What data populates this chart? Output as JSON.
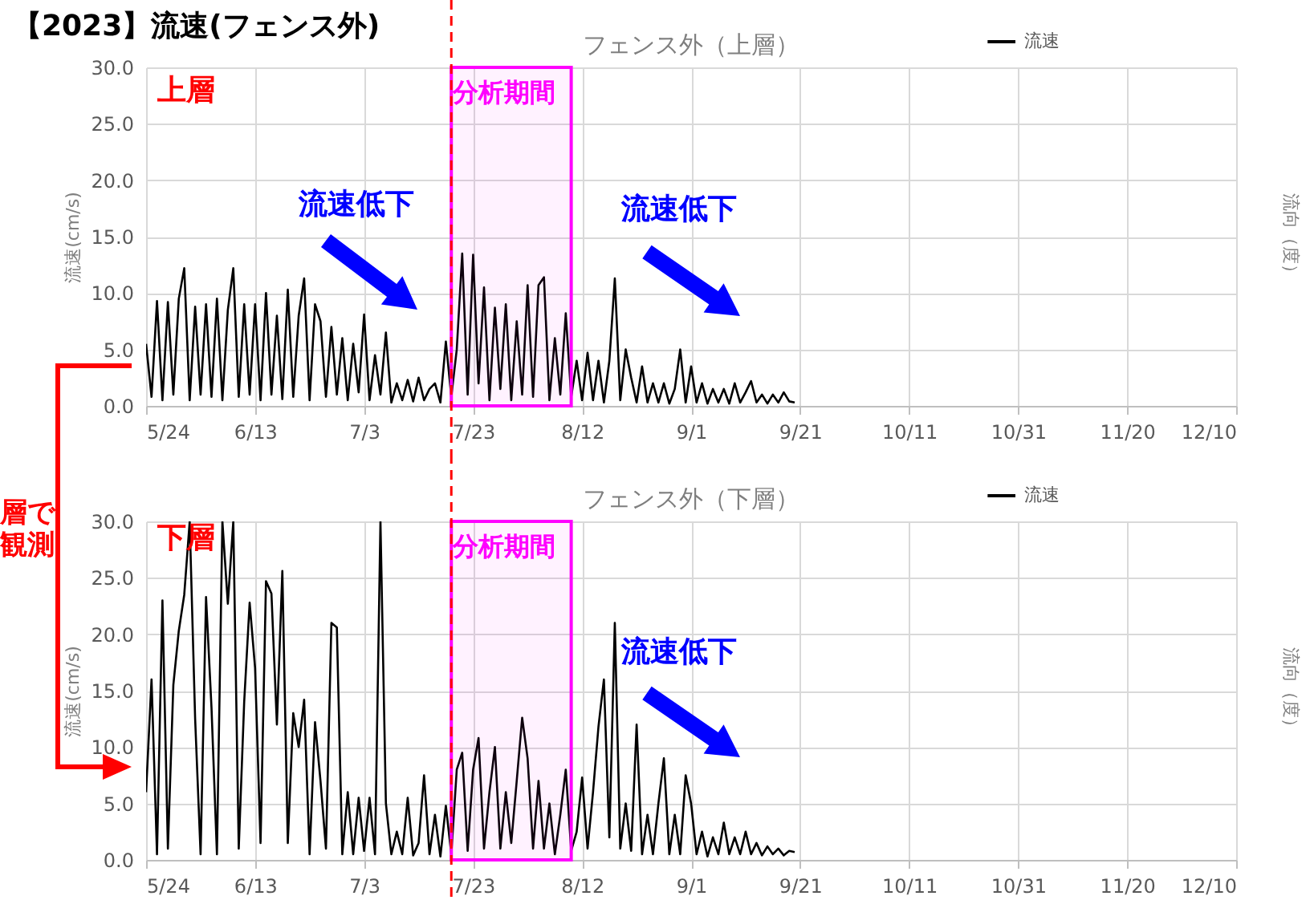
{
  "chart_data": [
    {
      "type": "line",
      "title": "フェンス外（上層）",
      "ylabel": "流速(cm/s)",
      "y2label": "流向（度）",
      "legend": "top right",
      "grid": true,
      "annotations": [
        "【2023】流速(フェンス外)",
        "上層",
        "流速低下",
        "流速低下",
        "層で観測"
      ],
      "xlim": [
        "2023-05-24",
        "2023-12-10"
      ],
      "xticks": [
        {
          "value": "2023-05-24",
          "label": "5/24"
        },
        {
          "value": "2023-06-13",
          "label": "6/13"
        },
        {
          "value": "2023-07-03",
          "label": "7/3"
        },
        {
          "value": "2023-07-23",
          "label": "7/23"
        },
        {
          "value": "2023-08-12",
          "label": "8/12"
        },
        {
          "value": "2023-09-01",
          "label": "9/1"
        },
        {
          "value": "2023-09-21",
          "label": "9/21"
        },
        {
          "value": "2023-10-11",
          "label": "10/11"
        },
        {
          "value": "2023-10-31",
          "label": "10/31"
        },
        {
          "value": "2023-11-20",
          "label": "11/20"
        },
        {
          "value": "2023-12-10",
          "label": "12/10"
        }
      ],
      "ylim": [
        0,
        30
      ],
      "yticks": [
        {
          "value": 0,
          "label": "0.0"
        },
        {
          "value": 5,
          "label": "5.0"
        },
        {
          "value": 10,
          "label": "10.0"
        },
        {
          "value": 15,
          "label": "15.0"
        },
        {
          "value": 20,
          "label": "20.0"
        },
        {
          "value": 25,
          "label": "25.0"
        },
        {
          "value": 30,
          "label": "30.0"
        }
      ],
      "ref_lines": [
        {
          "axis": "x",
          "value": "2023-07-19",
          "color": "#ff0000",
          "line_style": "dashed"
        }
      ],
      "bands": [
        {
          "axis": "x",
          "from": "2023-07-19",
          "to": "2023-08-10",
          "label": "分析期間",
          "color": "#ff00ff"
        }
      ],
      "x": [
        "2023-05-24",
        "2023-05-25",
        "2023-05-26",
        "2023-05-27",
        "2023-05-28",
        "2023-05-29",
        "2023-05-30",
        "2023-05-31",
        "2023-06-01",
        "2023-06-02",
        "2023-06-03",
        "2023-06-04",
        "2023-06-05",
        "2023-06-06",
        "2023-06-07",
        "2023-06-08",
        "2023-06-09",
        "2023-06-10",
        "2023-06-11",
        "2023-06-12",
        "2023-06-13",
        "2023-06-14",
        "2023-06-15",
        "2023-06-16",
        "2023-06-17",
        "2023-06-18",
        "2023-06-19",
        "2023-06-20",
        "2023-06-21",
        "2023-06-22",
        "2023-06-23",
        "2023-06-24",
        "2023-06-25",
        "2023-06-26",
        "2023-06-27",
        "2023-06-28",
        "2023-06-29",
        "2023-06-30",
        "2023-07-01",
        "2023-07-02",
        "2023-07-03",
        "2023-07-04",
        "2023-07-05",
        "2023-07-06",
        "2023-07-07",
        "2023-07-08",
        "2023-07-09",
        "2023-07-10",
        "2023-07-11",
        "2023-07-12",
        "2023-07-13",
        "2023-07-14",
        "2023-07-15",
        "2023-07-16",
        "2023-07-17",
        "2023-07-18",
        "2023-07-19",
        "2023-07-20",
        "2023-07-21",
        "2023-07-22",
        "2023-07-23",
        "2023-07-24",
        "2023-07-25",
        "2023-07-26",
        "2023-07-27",
        "2023-07-28",
        "2023-07-29",
        "2023-07-30",
        "2023-07-31",
        "2023-08-01",
        "2023-08-02",
        "2023-08-03",
        "2023-08-04",
        "2023-08-05",
        "2023-08-06",
        "2023-08-07",
        "2023-08-08",
        "2023-08-09",
        "2023-08-10",
        "2023-08-11",
        "2023-08-12",
        "2023-08-13",
        "2023-08-14",
        "2023-08-15",
        "2023-08-16",
        "2023-08-17",
        "2023-08-18",
        "2023-08-19",
        "2023-08-20",
        "2023-08-21",
        "2023-08-22",
        "2023-08-23",
        "2023-08-24",
        "2023-08-25",
        "2023-08-26",
        "2023-08-27",
        "2023-08-28",
        "2023-08-29",
        "2023-08-30",
        "2023-08-31",
        "2023-09-01",
        "2023-09-02",
        "2023-09-03",
        "2023-09-04",
        "2023-09-05",
        "2023-09-06",
        "2023-09-07",
        "2023-09-08",
        "2023-09-09",
        "2023-09-10",
        "2023-09-11",
        "2023-09-12",
        "2023-09-13",
        "2023-09-14",
        "2023-09-15",
        "2023-09-16",
        "2023-09-17",
        "2023-09-18",
        "2023-09-19",
        "2023-09-20"
      ],
      "series": [
        {
          "name": "流速",
          "color": "#000000",
          "values": [
            5.5,
            0.8,
            9.3,
            0.5,
            9.2,
            1.0,
            9.5,
            12.2,
            0.5,
            8.8,
            1.0,
            9.0,
            0.8,
            9.5,
            0.5,
            8.5,
            12.2,
            0.8,
            9.0,
            1.0,
            9.0,
            0.5,
            10.0,
            1.0,
            8.0,
            0.6,
            10.3,
            0.8,
            8.0,
            11.3,
            0.5,
            9.0,
            7.5,
            0.8,
            7.0,
            1.0,
            6.0,
            0.5,
            5.5,
            1.2,
            8.1,
            0.5,
            4.5,
            1.0,
            6.5,
            0.3,
            2.0,
            0.5,
            2.3,
            0.4,
            2.5,
            0.5,
            1.5,
            2.0,
            0.3,
            5.7,
            0.8,
            5.0,
            13.5,
            1.0,
            13.4,
            2.0,
            10.5,
            0.5,
            8.7,
            1.5,
            9.0,
            0.5,
            7.5,
            1.0,
            10.7,
            0.8,
            10.7,
            11.4,
            0.5,
            6.0,
            1.0,
            8.2,
            0.8,
            4.0,
            0.5,
            4.7,
            0.5,
            4.0,
            0.3,
            4.0,
            11.3,
            0.5,
            5.0,
            2.5,
            0.3,
            3.5,
            0.3,
            2.0,
            0.3,
            2.0,
            0.2,
            1.5,
            5.0,
            0.3,
            3.5,
            0.3,
            2.0,
            0.2,
            1.5,
            0.3,
            1.5,
            0.2,
            2.0,
            0.3,
            1.2,
            2.2,
            0.3,
            1.0,
            0.2,
            1.0,
            0.3,
            1.2,
            0.4,
            0.3
          ]
        }
      ]
    },
    {
      "type": "line",
      "title": "フェンス外（下層）",
      "ylabel": "流速(cm/s)",
      "y2label": "流向（度）",
      "legend": "top right",
      "grid": true,
      "annotations": [
        "下層",
        "流速低下"
      ],
      "xlim": [
        "2023-05-24",
        "2023-12-10"
      ],
      "xticks": [
        {
          "value": "2023-05-24",
          "label": "5/24"
        },
        {
          "value": "2023-06-13",
          "label": "6/13"
        },
        {
          "value": "2023-07-03",
          "label": "7/3"
        },
        {
          "value": "2023-07-23",
          "label": "7/23"
        },
        {
          "value": "2023-08-12",
          "label": "8/12"
        },
        {
          "value": "2023-09-01",
          "label": "9/1"
        },
        {
          "value": "2023-09-21",
          "label": "9/21"
        },
        {
          "value": "2023-10-11",
          "label": "10/11"
        },
        {
          "value": "2023-10-31",
          "label": "10/31"
        },
        {
          "value": "2023-11-20",
          "label": "11/20"
        },
        {
          "value": "2023-12-10",
          "label": "12/10"
        }
      ],
      "ylim": [
        0,
        30
      ],
      "yticks": [
        {
          "value": 0,
          "label": "0.0"
        },
        {
          "value": 5,
          "label": "5.0"
        },
        {
          "value": 10,
          "label": "10.0"
        },
        {
          "value": 15,
          "label": "15.0"
        },
        {
          "value": 20,
          "label": "20.0"
        },
        {
          "value": 25,
          "label": "25.0"
        },
        {
          "value": 30,
          "label": "30.0"
        }
      ],
      "ref_lines": [
        {
          "axis": "x",
          "value": "2023-07-19",
          "color": "#ff0000",
          "line_style": "dashed"
        }
      ],
      "bands": [
        {
          "axis": "x",
          "from": "2023-07-19",
          "to": "2023-08-10",
          "label": "分析期間",
          "color": "#ff00ff"
        }
      ],
      "x": [
        "2023-05-24",
        "2023-05-25",
        "2023-05-26",
        "2023-05-27",
        "2023-05-28",
        "2023-05-29",
        "2023-05-30",
        "2023-05-31",
        "2023-06-01",
        "2023-06-02",
        "2023-06-03",
        "2023-06-04",
        "2023-06-05",
        "2023-06-06",
        "2023-06-07",
        "2023-06-08",
        "2023-06-09",
        "2023-06-10",
        "2023-06-11",
        "2023-06-12",
        "2023-06-13",
        "2023-06-14",
        "2023-06-15",
        "2023-06-16",
        "2023-06-17",
        "2023-06-18",
        "2023-06-19",
        "2023-06-20",
        "2023-06-21",
        "2023-06-22",
        "2023-06-23",
        "2023-06-24",
        "2023-06-25",
        "2023-06-26",
        "2023-06-27",
        "2023-06-28",
        "2023-06-29",
        "2023-06-30",
        "2023-07-01",
        "2023-07-02",
        "2023-07-03",
        "2023-07-04",
        "2023-07-05",
        "2023-07-06",
        "2023-07-07",
        "2023-07-08",
        "2023-07-09",
        "2023-07-10",
        "2023-07-11",
        "2023-07-12",
        "2023-07-13",
        "2023-07-14",
        "2023-07-15",
        "2023-07-16",
        "2023-07-17",
        "2023-07-18",
        "2023-07-19",
        "2023-07-20",
        "2023-07-21",
        "2023-07-22",
        "2023-07-23",
        "2023-07-24",
        "2023-07-25",
        "2023-07-26",
        "2023-07-27",
        "2023-07-28",
        "2023-07-29",
        "2023-07-30",
        "2023-07-31",
        "2023-08-01",
        "2023-08-02",
        "2023-08-03",
        "2023-08-04",
        "2023-08-05",
        "2023-08-06",
        "2023-08-07",
        "2023-08-08",
        "2023-08-09",
        "2023-08-10",
        "2023-08-11",
        "2023-08-12",
        "2023-08-13",
        "2023-08-14",
        "2023-08-15",
        "2023-08-16",
        "2023-08-17",
        "2023-08-18",
        "2023-08-19",
        "2023-08-20",
        "2023-08-21",
        "2023-08-22",
        "2023-08-23",
        "2023-08-24",
        "2023-08-25",
        "2023-08-26",
        "2023-08-27",
        "2023-08-28",
        "2023-08-29",
        "2023-08-30",
        "2023-08-31",
        "2023-09-01",
        "2023-09-02",
        "2023-09-03",
        "2023-09-04",
        "2023-09-05",
        "2023-09-06",
        "2023-09-07",
        "2023-09-08",
        "2023-09-09",
        "2023-09-10",
        "2023-09-11",
        "2023-09-12",
        "2023-09-13",
        "2023-09-14",
        "2023-09-15",
        "2023-09-16",
        "2023-09-17",
        "2023-09-18",
        "2023-09-19",
        "2023-09-20"
      ],
      "series": [
        {
          "name": "流速",
          "color": "#000000",
          "values": [
            6.0,
            16.0,
            0.5,
            23.0,
            1.0,
            15.5,
            20.3,
            23.5,
            30.0,
            12.5,
            0.5,
            23.3,
            13.5,
            0.5,
            30.0,
            22.7,
            30.0,
            1.0,
            14.0,
            22.8,
            17.0,
            1.5,
            24.7,
            23.6,
            12.0,
            25.6,
            1.5,
            13.0,
            10.0,
            14.2,
            0.5,
            12.2,
            7.0,
            1.0,
            21.0,
            20.6,
            0.5,
            6.0,
            0.5,
            5.5,
            0.8,
            5.5,
            0.5,
            30.0,
            5.0,
            0.5,
            2.5,
            0.5,
            5.5,
            0.4,
            1.5,
            7.5,
            0.5,
            4.0,
            0.3,
            4.8,
            0.5,
            8.0,
            9.5,
            0.8,
            8.0,
            10.8,
            1.0,
            6.0,
            10.0,
            1.0,
            6.0,
            1.5,
            7.0,
            12.6,
            9.0,
            1.0,
            7.0,
            1.0,
            5.0,
            0.5,
            4.0,
            8.0,
            0.8,
            2.5,
            7.3,
            1.0,
            6.0,
            11.8,
            16.0,
            2.0,
            21.0,
            1.0,
            5.0,
            0.8,
            12.0,
            0.5,
            4.0,
            0.5,
            5.0,
            9.0,
            0.5,
            4.0,
            0.5,
            7.5,
            5.0,
            0.5,
            2.5,
            0.3,
            2.0,
            0.5,
            3.3,
            0.5,
            2.0,
            0.5,
            2.5,
            0.5,
            1.5,
            0.4,
            1.2,
            0.5,
            1.0,
            0.4,
            0.8,
            0.7
          ]
        }
      ]
    }
  ]
}
